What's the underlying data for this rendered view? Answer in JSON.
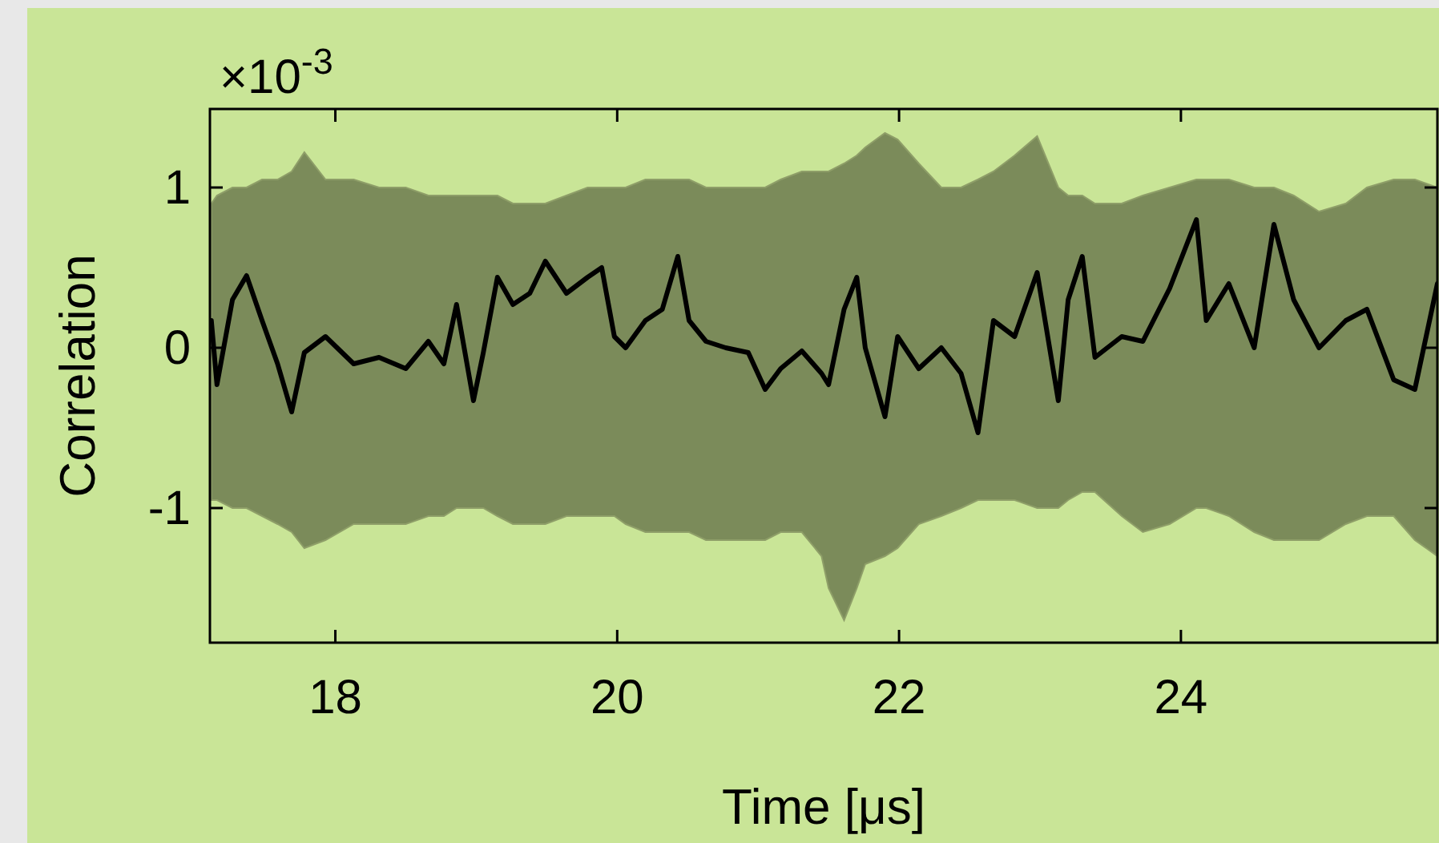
{
  "chart_data": {
    "type": "line",
    "xlabel": "Time [μs]",
    "ylabel": "Correlation",
    "annotations": [
      "×10$^{-3}$"
    ],
    "xlim": [
      17.11,
      25.82
    ],
    "ylim": [
      -1.84,
      1.49
    ],
    "xticks": [
      18,
      20,
      22,
      24
    ],
    "yticks": [
      -1,
      0,
      1
    ],
    "grid": false,
    "line_style": "solid",
    "marker": "none",
    "series": [
      {
        "color": "#000000",
        "x": [
          17.12,
          17.16,
          17.27,
          17.37,
          17.48,
          17.59,
          17.69,
          17.78,
          17.93,
          18.13,
          18.31,
          18.5,
          18.66,
          18.77,
          18.86,
          18.98,
          19.05,
          19.15,
          19.26,
          19.38,
          19.49,
          19.64,
          19.79,
          19.89,
          19.98,
          20.06,
          20.2,
          20.32,
          20.43,
          20.51,
          20.63,
          20.77,
          20.93,
          21.05,
          21.16,
          21.31,
          21.45,
          21.5,
          21.61,
          21.7,
          21.76,
          21.9,
          21.99,
          22.14,
          22.3,
          22.44,
          22.56,
          22.67,
          22.82,
          22.98,
          23.13,
          23.2,
          23.3,
          23.39,
          23.58,
          23.73,
          23.92,
          24.11,
          24.18,
          24.34,
          24.52,
          24.66,
          24.8,
          24.98,
          25.17,
          25.32,
          25.51,
          25.66,
          25.82
        ],
        "values": [
          0.17,
          -0.23,
          0.3,
          0.45,
          0.17,
          -0.1,
          -0.4,
          -0.03,
          0.07,
          -0.1,
          -0.06,
          -0.13,
          0.04,
          -0.1,
          0.27,
          -0.33,
          -0.03,
          0.44,
          0.27,
          0.34,
          0.54,
          0.34,
          0.44,
          0.5,
          0.07,
          0.0,
          0.17,
          0.24,
          0.57,
          0.17,
          0.04,
          0.0,
          -0.03,
          -0.26,
          -0.13,
          -0.02,
          -0.16,
          -0.23,
          0.24,
          0.44,
          0.0,
          -0.43,
          0.07,
          -0.13,
          0.0,
          -0.16,
          -0.53,
          0.17,
          0.07,
          0.47,
          -0.33,
          0.3,
          0.57,
          -0.06,
          0.07,
          0.04,
          0.37,
          0.8,
          0.17,
          0.4,
          0.0,
          0.77,
          0.3,
          0.0,
          0.17,
          0.24,
          -0.2,
          -0.26,
          0.4
        ],
        "upper": [
          0.9,
          0.95,
          1.0,
          1.0,
          1.05,
          1.05,
          1.1,
          1.22,
          1.05,
          1.05,
          1.0,
          1.0,
          0.95,
          0.95,
          0.95,
          0.95,
          0.95,
          0.95,
          0.9,
          0.9,
          0.9,
          0.95,
          1.0,
          1.0,
          1.0,
          1.0,
          1.05,
          1.05,
          1.05,
          1.05,
          1.0,
          1.0,
          1.0,
          1.0,
          1.05,
          1.1,
          1.1,
          1.1,
          1.15,
          1.2,
          1.25,
          1.34,
          1.3,
          1.15,
          1.0,
          1.0,
          1.05,
          1.1,
          1.2,
          1.32,
          1.0,
          0.95,
          0.95,
          0.9,
          0.9,
          0.95,
          1.0,
          1.05,
          1.05,
          1.05,
          1.0,
          1.0,
          0.95,
          0.85,
          0.9,
          1.0,
          1.05,
          1.05,
          1.0
        ],
        "lower": [
          -0.95,
          -0.95,
          -1.0,
          -1.0,
          -1.05,
          -1.1,
          -1.15,
          -1.25,
          -1.2,
          -1.1,
          -1.1,
          -1.1,
          -1.05,
          -1.05,
          -1.0,
          -1.0,
          -1.0,
          -1.05,
          -1.1,
          -1.1,
          -1.1,
          -1.05,
          -1.05,
          -1.05,
          -1.05,
          -1.1,
          -1.15,
          -1.15,
          -1.15,
          -1.15,
          -1.2,
          -1.2,
          -1.2,
          -1.2,
          -1.15,
          -1.15,
          -1.3,
          -1.5,
          -1.7,
          -1.5,
          -1.35,
          -1.3,
          -1.25,
          -1.1,
          -1.05,
          -1.0,
          -0.95,
          -0.95,
          -0.95,
          -1.0,
          -1.0,
          -0.95,
          -0.9,
          -0.9,
          -1.05,
          -1.15,
          -1.1,
          -1.0,
          -1.0,
          -1.05,
          -1.15,
          -1.2,
          -1.2,
          -1.2,
          -1.1,
          -1.05,
          -1.05,
          -1.2,
          -1.3
        ]
      }
    ]
  }
}
